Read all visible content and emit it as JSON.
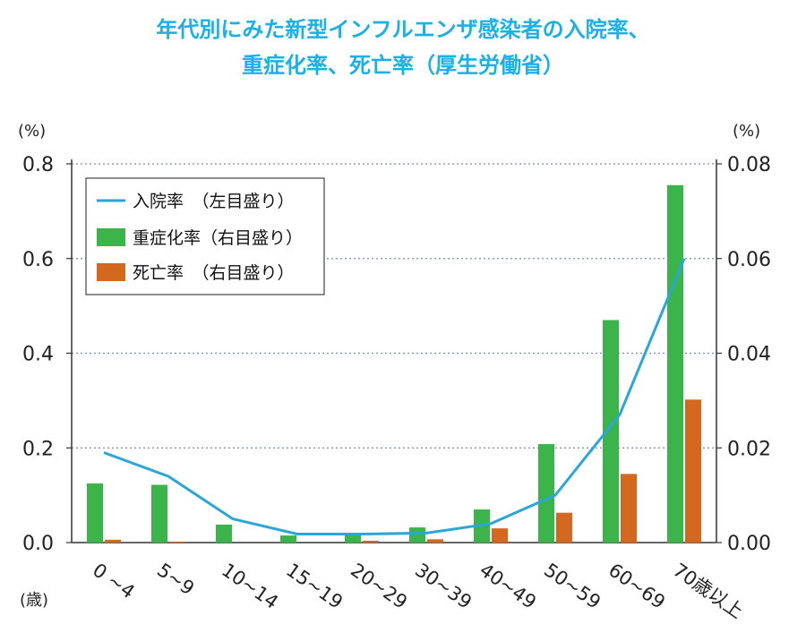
{
  "title_line1": "年代別にみた新型インフルエンザ感染者の入院率、",
  "title_line2": "重症化率、死亡率（厚生労働省）",
  "chart_data": {
    "type": "bar",
    "categories": [
      "0 ~4",
      "5~9",
      "10~14",
      "15~19",
      "20~29",
      "30~39",
      "40~49",
      "50~59",
      "60~69",
      "70歳以上"
    ],
    "x_unit_label": "(歳)",
    "left_axis": {
      "unit_label": "(%)",
      "ylim": [
        0,
        0.8
      ],
      "ticks": [
        "0.0",
        "0.2",
        "0.4",
        "0.6",
        "0.8"
      ]
    },
    "right_axis": {
      "unit_label": "(%)",
      "ylim": [
        0,
        0.08
      ],
      "ticks": [
        "0.00",
        "0.02",
        "0.04",
        "0.06",
        "0.08"
      ]
    },
    "grid": "horizontal-dotted",
    "legend_position": "top-left",
    "series": [
      {
        "name": "入院率　（左目盛り）",
        "type": "line",
        "axis": "left",
        "color": "#2aa6d8",
        "values": [
          0.19,
          0.14,
          0.05,
          0.018,
          0.018,
          0.02,
          0.04,
          0.1,
          0.27,
          0.6
        ]
      },
      {
        "name": "重症化率（右目盛り）",
        "type": "bar",
        "axis": "right",
        "color": "#3bb54a",
        "values": [
          0.0125,
          0.0122,
          0.0038,
          0.0015,
          0.0018,
          0.0032,
          0.007,
          0.0208,
          0.047,
          0.0755
        ]
      },
      {
        "name": "死亡率　（右目盛り）",
        "type": "bar",
        "axis": "right",
        "color": "#d2691e",
        "values": [
          0.0006,
          0.0002,
          0.0,
          0.0,
          0.0004,
          0.0007,
          0.003,
          0.0063,
          0.0145,
          0.0302
        ]
      }
    ]
  }
}
